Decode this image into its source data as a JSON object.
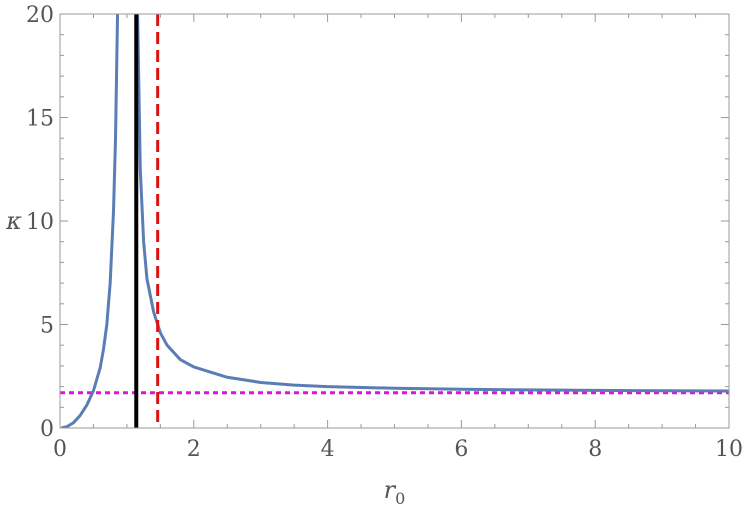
{
  "chart_data": {
    "type": "line",
    "title": "",
    "xlabel": "r",
    "xlabel_subscript": "0",
    "ylabel": "κ",
    "xlim": [
      0,
      10
    ],
    "ylim": [
      0,
      20
    ],
    "x_ticks": [
      0,
      2,
      4,
      6,
      8,
      10
    ],
    "y_ticks": [
      0,
      5,
      10,
      15,
      20
    ],
    "grid": false,
    "frame": true,
    "series": [
      {
        "style": "solid",
        "color": "#5b7db5",
        "points": [
          [
            0.02,
            0.0
          ],
          [
            0.1,
            0.06
          ],
          [
            0.2,
            0.25
          ],
          [
            0.3,
            0.6
          ],
          [
            0.4,
            1.1
          ],
          [
            0.5,
            1.8
          ],
          [
            0.6,
            2.9
          ],
          [
            0.65,
            3.8
          ],
          [
            0.7,
            5.0
          ],
          [
            0.75,
            7.0
          ],
          [
            0.8,
            10.5
          ],
          [
            0.83,
            14.0
          ],
          [
            0.86,
            20.0
          ]
        ]
      },
      {
        "style": "solid",
        "color": "#5b7db5",
        "points": [
          [
            1.16,
            20.0
          ],
          [
            1.2,
            12.5
          ],
          [
            1.25,
            9.0
          ],
          [
            1.3,
            7.2
          ],
          [
            1.4,
            5.6
          ],
          [
            1.5,
            4.6
          ],
          [
            1.6,
            4.0
          ],
          [
            1.8,
            3.3
          ],
          [
            2.0,
            2.95
          ],
          [
            2.5,
            2.45
          ],
          [
            3.0,
            2.2
          ],
          [
            3.5,
            2.07
          ],
          [
            4.0,
            2.0
          ],
          [
            5.0,
            1.92
          ],
          [
            6.0,
            1.87
          ],
          [
            7.0,
            1.84
          ],
          [
            8.0,
            1.82
          ],
          [
            9.0,
            1.8
          ],
          [
            10.0,
            1.79
          ]
        ]
      }
    ],
    "vertical_lines": [
      {
        "x": 1.14,
        "style": "solid",
        "color": "#000000"
      },
      {
        "x": 1.46,
        "style": "dashed",
        "color": "#e01010"
      }
    ],
    "horizontal_lines": [
      {
        "y": 1.7,
        "style": "dotted",
        "color": "#e010e0"
      }
    ]
  }
}
